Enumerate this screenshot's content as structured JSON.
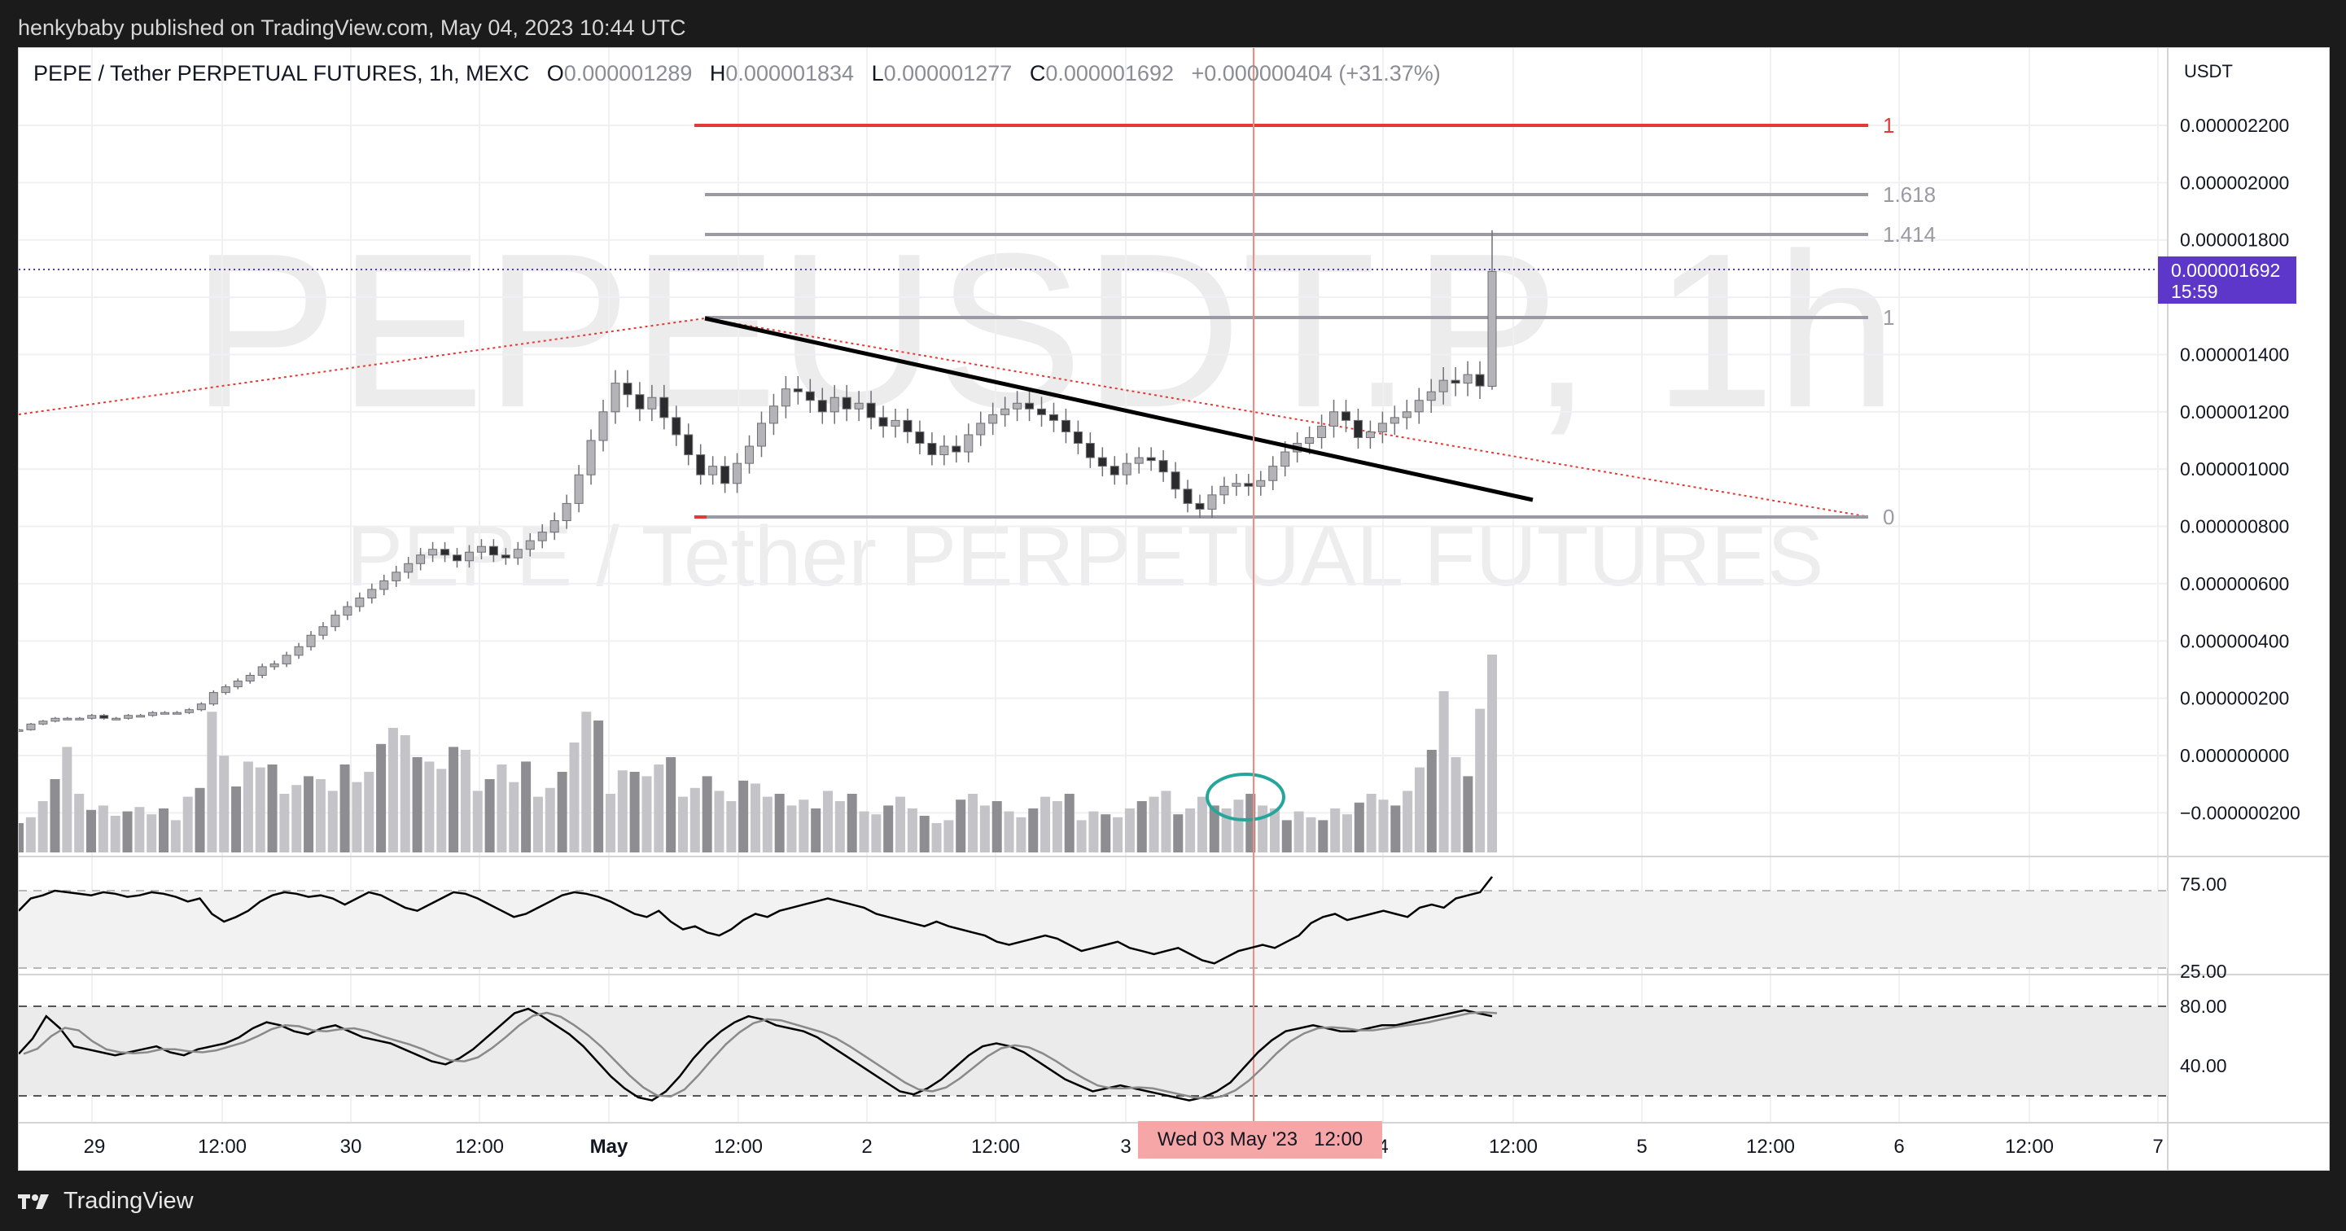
{
  "header": {
    "published_by": "henkybaby published on TradingView.com, May 04, 2023 10:44 UTC"
  },
  "legend": {
    "symbol": "PEPE / Tether PERPETUAL FUTURES, 1h, MEXC",
    "o_label": "O",
    "o_value": "0.000001289",
    "h_label": "H",
    "h_value": "0.000001834",
    "l_label": "L",
    "l_value": "0.000001277",
    "c_label": "C",
    "c_value": "0.000001692",
    "change": "+0.000000404 (+31.37%)"
  },
  "watermark": {
    "ticker": "PEPEUSDT.P, 1h",
    "name": "PEPE / Tether PERPETUAL FUTURES"
  },
  "price_axis": {
    "currency": "USDT",
    "ticks": [
      "0.000002200",
      "0.000002000",
      "0.000001800",
      "0.000001400",
      "0.000001200",
      "0.000001000",
      "0.000000800",
      "0.000000600",
      "0.000000400",
      "0.000000200",
      "0.000000000",
      "−0.000000200"
    ],
    "last_price": "0.000001692",
    "countdown": "15:59"
  },
  "fib_labels": {
    "red_one": "1",
    "l1618": "1.618",
    "l1414": "1.414",
    "l1": "1",
    "l0": "0"
  },
  "rsi_axis": {
    "upper": "75.00",
    "lower": "25.00"
  },
  "stoch_axis": {
    "upper": "80.00",
    "lower": "40.00"
  },
  "time_axis": {
    "ticks": [
      "29",
      "12:00",
      "30",
      "12:00",
      "May",
      "12:00",
      "2",
      "12:00",
      "3",
      "4",
      "12:00",
      "5",
      "12:00",
      "6",
      "12:00",
      "7"
    ],
    "crosshair": "Wed 03 May '23",
    "crosshair_time": "12:00"
  },
  "footer": {
    "brand": "TradingView"
  },
  "colors": {
    "candle": "#8f8f94",
    "trend": "#000000",
    "fib_red": "#e53935",
    "fib_grey": "#9a9aa5",
    "crosshair": "#f28b82",
    "price_line": "#5c37c9",
    "ellipse": "#26a69a"
  },
  "chart_data": {
    "type": "candlestick",
    "symbol": "PEPE / Tether PERPETUAL FUTURES",
    "interval": "1h",
    "ohlc_last": {
      "open": 1.289e-06,
      "high": 1.834e-06,
      "low": 1.277e-06,
      "close": 1.692e-06
    },
    "close_path": [
      9e-08,
      1.1e-07,
      1.2e-07,
      1.3e-07,
      1.3e-07,
      1.3e-07,
      1.4e-07,
      1.3e-07,
      1.3e-07,
      1.4e-07,
      1.4e-07,
      1.5e-07,
      1.5e-07,
      1.5e-07,
      1.6e-07,
      1.8e-07,
      2.2e-07,
      2.4e-07,
      2.6e-07,
      2.8e-07,
      3.1e-07,
      3.2e-07,
      3.5e-07,
      3.8e-07,
      4.2e-07,
      4.5e-07,
      4.9e-07,
      5.2e-07,
      5.5e-07,
      5.8e-07,
      6.1e-07,
      6.4e-07,
      6.7e-07,
      7e-07,
      7.2e-07,
      7e-07,
      6.8e-07,
      7.1e-07,
      7.3e-07,
      7e-07,
      6.9e-07,
      7.2e-07,
      7.5e-07,
      7.8e-07,
      8.2e-07,
      8.8e-07,
      9.8e-07,
      1.1e-06,
      1.2e-06,
      1.3e-06,
      1.26e-06,
      1.21e-06,
      1.25e-06,
      1.18e-06,
      1.12e-06,
      1.05e-06,
      9.8e-07,
      1.01e-06,
      9.5e-07,
      1.02e-06,
      1.08e-06,
      1.16e-06,
      1.22e-06,
      1.28e-06,
      1.27e-06,
      1.24e-06,
      1.2e-06,
      1.25e-06,
      1.21e-06,
      1.23e-06,
      1.18e-06,
      1.15e-06,
      1.17e-06,
      1.13e-06,
      1.09e-06,
      1.05e-06,
      1.08e-06,
      1.06e-06,
      1.12e-06,
      1.16e-06,
      1.19e-06,
      1.21e-06,
      1.23e-06,
      1.21e-06,
      1.19e-06,
      1.17e-06,
      1.13e-06,
      1.09e-06,
      1.04e-06,
      1.01e-06,
      9.8e-07,
      1.02e-06,
      1.04e-06,
      1.03e-06,
      9.9e-07,
      9.3e-07,
      8.8e-07,
      8.6e-07,
      9.1e-07,
      9.4e-07,
      9.5e-07,
      9.4e-07,
      9.6e-07,
      1.01e-06,
      1.06e-06,
      1.09e-06,
      1.11e-06,
      1.15e-06,
      1.2e-06,
      1.17e-06,
      1.11e-06,
      1.13e-06,
      1.16e-06,
      1.18e-06,
      1.2e-06,
      1.24e-06,
      1.27e-06,
      1.31e-06,
      1.3e-06,
      1.33e-06,
      1.29e-06,
      1.69e-06
    ],
    "volume_path": [
      20,
      24,
      35,
      50,
      72,
      40,
      29,
      32,
      25,
      28,
      31,
      26,
      30,
      22,
      38,
      44,
      96,
      66,
      45,
      62,
      58,
      60,
      40,
      46,
      52,
      50,
      42,
      60,
      48,
      55,
      74,
      85,
      80,
      65,
      62,
      57,
      72,
      70,
      42,
      50,
      60,
      48,
      62,
      38,
      44,
      55,
      75,
      96,
      90,
      40,
      56,
      55,
      52,
      60,
      65,
      38,
      44,
      52,
      42,
      35,
      49,
      47,
      38,
      40,
      32,
      36,
      30,
      42,
      35,
      40,
      28,
      26,
      32,
      38,
      30,
      25,
      20,
      22,
      36,
      40,
      32,
      35,
      28,
      24,
      30,
      38,
      35,
      40,
      22,
      28,
      26,
      24,
      30,
      35,
      38,
      42,
      26,
      30,
      38,
      32,
      30,
      36,
      40,
      32,
      30,
      22,
      28,
      24,
      22,
      30,
      26,
      34,
      40,
      36,
      32,
      42,
      58,
      70,
      110,
      65,
      52,
      98,
      135
    ],
    "rsi_path": [
      62,
      70,
      72,
      75,
      74,
      73,
      72,
      74,
      73,
      71,
      72,
      74,
      73,
      71,
      68,
      70,
      60,
      55,
      58,
      62,
      68,
      72,
      74,
      73,
      71,
      72,
      70,
      66,
      70,
      74,
      72,
      68,
      64,
      62,
      66,
      70,
      74,
      73,
      70,
      66,
      62,
      58,
      60,
      64,
      68,
      72,
      74,
      73,
      71,
      68,
      64,
      60,
      58,
      62,
      55,
      50,
      52,
      48,
      46,
      50,
      56,
      60,
      58,
      62,
      64,
      66,
      68,
      70,
      68,
      66,
      64,
      60,
      58,
      56,
      54,
      52,
      55,
      52,
      50,
      48,
      46,
      42,
      40,
      42,
      44,
      46,
      44,
      40,
      36,
      38,
      40,
      42,
      38,
      36,
      34,
      36,
      38,
      34,
      30,
      28,
      32,
      36,
      38,
      40,
      38,
      42,
      46,
      54,
      58,
      60,
      56,
      58,
      60,
      62,
      60,
      58,
      64,
      66,
      64,
      70,
      72,
      74,
      84
    ],
    "stoch_path": [
      55,
      65,
      80,
      72,
      60,
      58,
      56,
      54,
      56,
      58,
      60,
      56,
      54,
      58,
      60,
      62,
      66,
      72,
      76,
      74,
      70,
      68,
      72,
      74,
      70,
      66,
      64,
      62,
      58,
      54,
      50,
      48,
      52,
      58,
      66,
      74,
      82,
      85,
      80,
      74,
      68,
      60,
      50,
      40,
      32,
      26,
      24,
      30,
      40,
      52,
      62,
      70,
      76,
      80,
      78,
      74,
      72,
      70,
      66,
      60,
      54,
      48,
      42,
      36,
      30,
      28,
      32,
      38,
      46,
      54,
      60,
      62,
      60,
      56,
      50,
      44,
      38,
      34,
      30,
      32,
      34,
      32,
      30,
      28,
      26,
      24,
      26,
      30,
      36,
      46,
      56,
      64,
      70,
      72,
      74,
      72,
      70,
      70,
      72,
      74,
      74,
      76,
      78,
      80,
      82,
      84,
      82,
      80
    ],
    "fib_levels": {
      "red_one": 2.2e-06,
      "1.618": 1.96e-06,
      "1.414": 1.82e-06,
      "1": 1.53e-06,
      "0": 8.3e-07
    },
    "trendline": {
      "from": {
        "date": "May 01 09:00",
        "price": 1.52e-06
      },
      "to": {
        "date": "May 04 14:00",
        "price": 8.9e-07
      }
    },
    "crosshair": "Wed 03 May '23 12:00",
    "rsi_levels": [
      75,
      25
    ],
    "stoch_levels": [
      80,
      40
    ]
  }
}
